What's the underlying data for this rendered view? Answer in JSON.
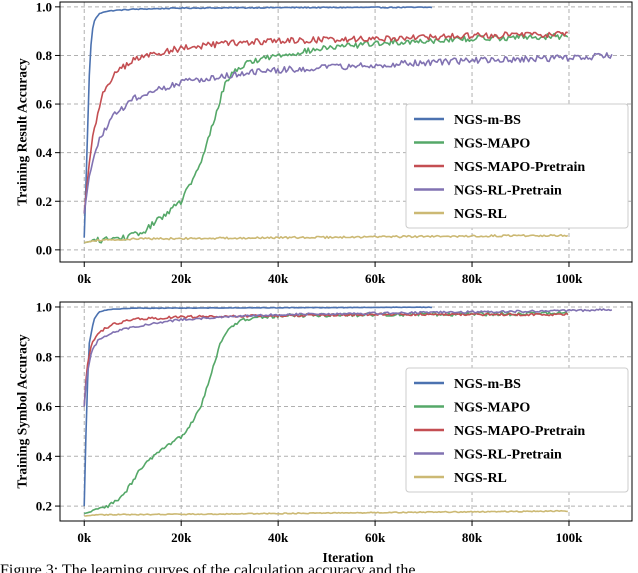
{
  "chart_data": [
    {
      "type": "line",
      "ylabel": "Training Result Accuracy",
      "xlabel": "",
      "xlim": [
        -5000,
        113000
      ],
      "ylim": [
        -0.05,
        1.02
      ],
      "xticks": [
        0,
        20000,
        40000,
        60000,
        80000,
        100000
      ],
      "xtick_labels": [
        "0k",
        "20k",
        "40k",
        "60k",
        "80k",
        "100k"
      ],
      "yticks": [
        0.0,
        0.2,
        0.4,
        0.6,
        0.8,
        1.0
      ],
      "ytick_labels": [
        "0.0",
        "0.2",
        "0.4",
        "0.6",
        "0.8",
        "1.0"
      ],
      "grid": true,
      "legend_position": "center-right",
      "series": [
        {
          "name": "NGS-m-BS",
          "color": "#4c72b0",
          "noise": 0.002,
          "points": [
            [
              0,
              0.05
            ],
            [
              500,
              0.35
            ],
            [
              1000,
              0.7
            ],
            [
              1500,
              0.88
            ],
            [
              2000,
              0.94
            ],
            [
              3000,
              0.97
            ],
            [
              4000,
              0.98
            ],
            [
              6000,
              0.985
            ],
            [
              10000,
              0.99
            ],
            [
              20000,
              0.995
            ],
            [
              40000,
              0.997
            ],
            [
              72000,
              0.998
            ]
          ]
        },
        {
          "name": "NGS-MAPO",
          "color": "#55a868",
          "noise": 0.012,
          "points": [
            [
              0,
              0.03
            ],
            [
              3000,
              0.04
            ],
            [
              8000,
              0.05
            ],
            [
              12000,
              0.07
            ],
            [
              15000,
              0.12
            ],
            [
              20000,
              0.2
            ],
            [
              24000,
              0.35
            ],
            [
              27000,
              0.55
            ],
            [
              29000,
              0.68
            ],
            [
              31000,
              0.74
            ],
            [
              35000,
              0.78
            ],
            [
              40000,
              0.8
            ],
            [
              50000,
              0.83
            ],
            [
              60000,
              0.85
            ],
            [
              80000,
              0.87
            ],
            [
              100000,
              0.88
            ]
          ]
        },
        {
          "name": "NGS-MAPO-Pretrain",
          "color": "#c44e52",
          "noise": 0.013,
          "points": [
            [
              0,
              0.15
            ],
            [
              1000,
              0.35
            ],
            [
              2000,
              0.5
            ],
            [
              4000,
              0.65
            ],
            [
              6000,
              0.72
            ],
            [
              10000,
              0.78
            ],
            [
              15000,
              0.81
            ],
            [
              20000,
              0.83
            ],
            [
              30000,
              0.85
            ],
            [
              40000,
              0.86
            ],
            [
              60000,
              0.87
            ],
            [
              80000,
              0.88
            ],
            [
              100000,
              0.89
            ]
          ]
        },
        {
          "name": "NGS-RL-Pretrain",
          "color": "#8172b2",
          "noise": 0.013,
          "points": [
            [
              0,
              0.15
            ],
            [
              1000,
              0.3
            ],
            [
              3000,
              0.45
            ],
            [
              6000,
              0.55
            ],
            [
              10000,
              0.62
            ],
            [
              15000,
              0.66
            ],
            [
              20000,
              0.69
            ],
            [
              30000,
              0.72
            ],
            [
              40000,
              0.74
            ],
            [
              60000,
              0.76
            ],
            [
              80000,
              0.78
            ],
            [
              100000,
              0.79
            ],
            [
              109000,
              0.8
            ]
          ]
        },
        {
          "name": "NGS-RL",
          "color": "#ccb974",
          "noise": 0.004,
          "points": [
            [
              0,
              0.03
            ],
            [
              3000,
              0.04
            ],
            [
              10000,
              0.045
            ],
            [
              40000,
              0.05
            ],
            [
              70000,
              0.055
            ],
            [
              100000,
              0.06
            ]
          ]
        }
      ]
    },
    {
      "type": "line",
      "ylabel": "Training Symbol Accuracy",
      "xlabel": "Iteration",
      "xlim": [
        -5000,
        113000
      ],
      "ylim": [
        0.14,
        1.02
      ],
      "xticks": [
        0,
        20000,
        40000,
        60000,
        80000,
        100000
      ],
      "xtick_labels": [
        "0k",
        "20k",
        "40k",
        "60k",
        "80k",
        "100k"
      ],
      "yticks": [
        0.2,
        0.4,
        0.6,
        0.8,
        1.0
      ],
      "ytick_labels": [
        "0.2",
        "0.4",
        "0.6",
        "0.8",
        "1.0"
      ],
      "grid": true,
      "legend_position": "center-right",
      "series": [
        {
          "name": "NGS-m-BS",
          "color": "#4c72b0",
          "noise": 0.001,
          "points": [
            [
              0,
              0.2
            ],
            [
              500,
              0.6
            ],
            [
              1000,
              0.85
            ],
            [
              2000,
              0.95
            ],
            [
              3000,
              0.98
            ],
            [
              5000,
              0.99
            ],
            [
              10000,
              0.995
            ],
            [
              72000,
              0.999
            ]
          ]
        },
        {
          "name": "NGS-MAPO",
          "color": "#55a868",
          "noise": 0.008,
          "points": [
            [
              0,
              0.17
            ],
            [
              2000,
              0.18
            ],
            [
              5000,
              0.2
            ],
            [
              8000,
              0.24
            ],
            [
              10000,
              0.3
            ],
            [
              12000,
              0.36
            ],
            [
              15000,
              0.41
            ],
            [
              18000,
              0.45
            ],
            [
              20000,
              0.48
            ],
            [
              22000,
              0.53
            ],
            [
              24000,
              0.6
            ],
            [
              26000,
              0.72
            ],
            [
              28000,
              0.85
            ],
            [
              30000,
              0.92
            ],
            [
              33000,
              0.95
            ],
            [
              40000,
              0.965
            ],
            [
              60000,
              0.97
            ],
            [
              100000,
              0.975
            ]
          ]
        },
        {
          "name": "NGS-MAPO-Pretrain",
          "color": "#c44e52",
          "noise": 0.005,
          "points": [
            [
              0,
              0.6
            ],
            [
              500,
              0.75
            ],
            [
              1500,
              0.85
            ],
            [
              3000,
              0.9
            ],
            [
              6000,
              0.93
            ],
            [
              10000,
              0.95
            ],
            [
              20000,
              0.96
            ],
            [
              40000,
              0.965
            ],
            [
              60000,
              0.97
            ],
            [
              80000,
              0.97
            ],
            [
              100000,
              0.97
            ]
          ]
        },
        {
          "name": "NGS-RL-Pretrain",
          "color": "#8172b2",
          "noise": 0.004,
          "points": [
            [
              0,
              0.6
            ],
            [
              500,
              0.72
            ],
            [
              1500,
              0.82
            ],
            [
              3000,
              0.87
            ],
            [
              6000,
              0.9
            ],
            [
              10000,
              0.92
            ],
            [
              20000,
              0.95
            ],
            [
              30000,
              0.96
            ],
            [
              40000,
              0.97
            ],
            [
              60000,
              0.975
            ],
            [
              80000,
              0.98
            ],
            [
              100000,
              0.985
            ],
            [
              109000,
              0.99
            ]
          ]
        },
        {
          "name": "NGS-RL",
          "color": "#ccb974",
          "noise": 0.002,
          "points": [
            [
              0,
              0.16
            ],
            [
              3000,
              0.165
            ],
            [
              20000,
              0.167
            ],
            [
              50000,
              0.172
            ],
            [
              80000,
              0.177
            ],
            [
              100000,
              0.18
            ]
          ]
        }
      ]
    }
  ],
  "caption": "Figure 3: The learning curves of the calculation accuracy and the"
}
